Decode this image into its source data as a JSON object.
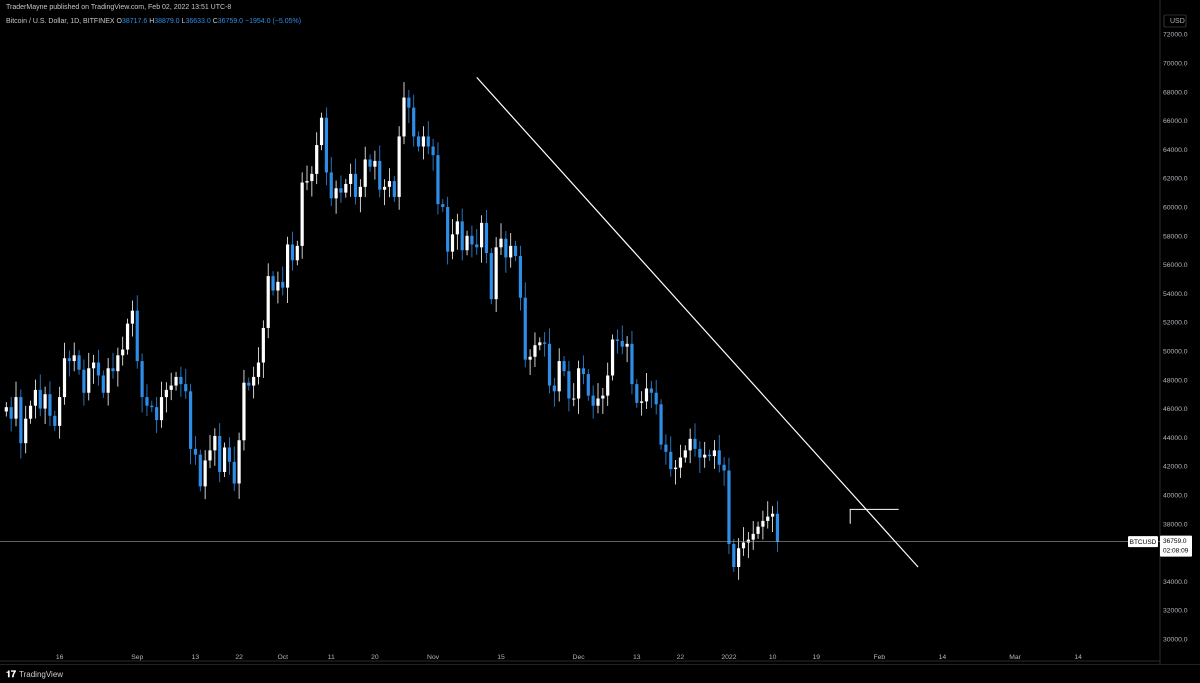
{
  "header": {
    "published": "TraderMayne published on TradingView.com, Feb 02, 2022 13:51 UTC-8"
  },
  "symbol": {
    "name": "Bitcoin / U.S. Dollar, 1D, BITFINEX",
    "open_label": "O",
    "open": "38717.6",
    "high_label": "H",
    "high": "38879.0",
    "low_label": "L",
    "low": "36633.0",
    "close_label": "C",
    "close": "36759.0",
    "change": "−1954.0 (−5.05%)"
  },
  "colors": {
    "background": "#000000",
    "up_candle": "#ffffff",
    "down_candle": "#2e8de6",
    "trendline": "#ffffff",
    "price_line": "#9a9a9a",
    "axis_text": "#b2b5be"
  },
  "price_tag": {
    "symbol": "BTCUSD",
    "price": "36759.0",
    "countdown": "02:08:09"
  },
  "footer": {
    "logo_icon": "tradingview-logo-icon",
    "logo_text": "TradingView"
  },
  "chart_data": {
    "type": "candlestick",
    "currency_label": "USD",
    "ylim": [
      29000,
      73000
    ],
    "y_ticks": [
      30000,
      32000,
      34000,
      36000,
      38000,
      40000,
      42000,
      44000,
      46000,
      48000,
      50000,
      52000,
      54000,
      56000,
      58000,
      60000,
      62000,
      64000,
      66000,
      68000,
      70000,
      72000
    ],
    "y_tick_labels": [
      "30000.0",
      "32000.0",
      "34000.0",
      "36000.0",
      "38000.0",
      "40000.0",
      "42000.0",
      "44000.0",
      "46000.0",
      "48000.0",
      "50000.0",
      "52000.0",
      "54000.0",
      "56000.0",
      "58000.0",
      "60000.0",
      "62000.0",
      "64000.0",
      "66000.0",
      "68000.0",
      "70000.0",
      "72000.0"
    ],
    "x_start": "2021-08-05",
    "x_ticks": [
      {
        "label": "16",
        "date": "2021-08-16"
      },
      {
        "label": "Sep",
        "date": "2021-09-01"
      },
      {
        "label": "13",
        "date": "2021-09-13"
      },
      {
        "label": "22",
        "date": "2021-09-22"
      },
      {
        "label": "Oct",
        "date": "2021-10-01"
      },
      {
        "label": "11",
        "date": "2021-10-11"
      },
      {
        "label": "20",
        "date": "2021-10-20"
      },
      {
        "label": "Nov",
        "date": "2021-11-01"
      },
      {
        "label": "15",
        "date": "2021-11-15"
      },
      {
        "label": "Dec",
        "date": "2021-12-01"
      },
      {
        "label": "13",
        "date": "2021-12-13"
      },
      {
        "label": "22",
        "date": "2021-12-22"
      },
      {
        "label": "2022",
        "date": "2022-01-01"
      },
      {
        "label": "10",
        "date": "2022-01-10"
      },
      {
        "label": "19",
        "date": "2022-01-19"
      },
      {
        "label": "Feb",
        "date": "2022-02-01"
      },
      {
        "label": "14",
        "date": "2022-02-14"
      },
      {
        "label": "Mar",
        "date": "2022-03-01"
      },
      {
        "label": "14",
        "date": "2022-03-14"
      }
    ],
    "closes": [
      46100,
      45300,
      46800,
      43600,
      45300,
      46200,
      47300,
      46000,
      47000,
      45500,
      44800,
      46800,
      49500,
      49300,
      49700,
      48700,
      47100,
      48800,
      49200,
      48300,
      47100,
      48800,
      48600,
      49700,
      50100,
      51900,
      52800,
      49300,
      46800,
      46200,
      46100,
      45200,
      46800,
      47300,
      47600,
      48200,
      47700,
      47200,
      43200,
      42800,
      40600,
      42400,
      43100,
      44100,
      41600,
      43300,
      42300,
      40800,
      43800,
      47800,
      47600,
      48200,
      49200,
      51600,
      55200,
      54200,
      54800,
      54400,
      57400,
      56300,
      57300,
      61700,
      61800,
      62300,
      64300,
      66200,
      62400,
      60600,
      61300,
      61000,
      61600,
      62300,
      60700,
      61400,
      63300,
      62800,
      63200,
      61200,
      61400,
      61800,
      60700,
      64900,
      67600,
      66900,
      64900,
      64200,
      64900,
      64200,
      63600,
      60200,
      60000,
      56900,
      58100,
      59000,
      57000,
      58000,
      57400,
      57200,
      58900,
      56800,
      53600,
      57200,
      57800,
      56500,
      57300,
      56600,
      53700,
      49400,
      49600,
      50400,
      50600,
      50500,
      47600,
      47200,
      49300,
      48600,
      46700,
      46700,
      48800,
      48400,
      46900,
      46200,
      46700,
      46900,
      48300,
      50800,
      50700,
      50300,
      50500,
      47700,
      46400,
      46500,
      47400,
      47100,
      46300,
      43500,
      43000,
      41800,
      41900,
      42600,
      43100,
      43900,
      43200,
      42600,
      42800,
      42700,
      43100,
      42100,
      41700,
      36600,
      35000,
      36300,
      36700,
      36900,
      37300,
      37800,
      38200,
      38500,
      38700,
      36759
    ],
    "trendline": [
      {
        "date": "2021-11-10",
        "price": 69000
      },
      {
        "date": "2022-02-09",
        "price": 35000
      }
    ],
    "range_box": {
      "start": "2022-01-26",
      "end": "2022-02-05",
      "top": 39000,
      "bottom": 38000
    },
    "last_price": 36759.0
  }
}
